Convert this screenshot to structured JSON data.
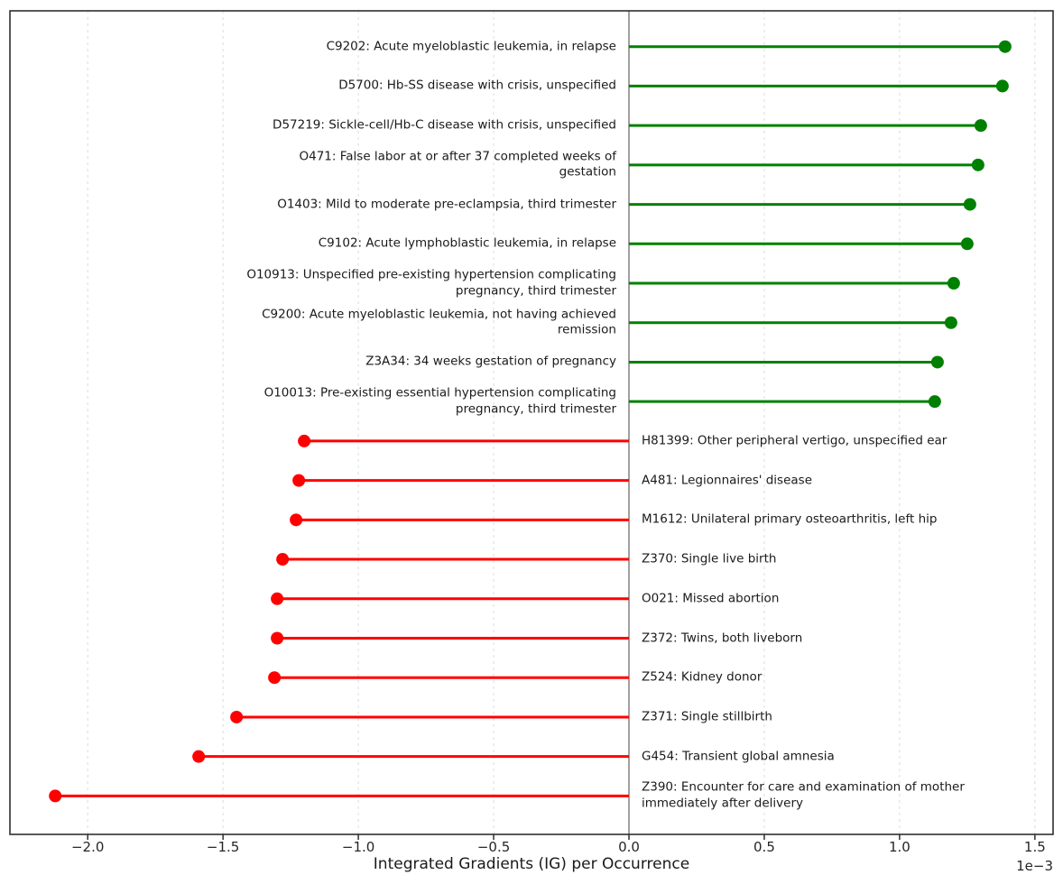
{
  "chart_data": {
    "type": "bar",
    "variant": "horizontal-lollipop-stem",
    "title": "",
    "xlabel": "Integrated Gradients (IG) per Occurrence",
    "ylabel": "",
    "axis_offset_label": "1e−3",
    "value_scale": "1e-3",
    "xlim_e3": [
      -2.29,
      1.57
    ],
    "grid": "vertical-dashed",
    "zero_line": true,
    "legend": "none",
    "xticks": [
      {
        "value": -2.0,
        "label": "−2.0"
      },
      {
        "value": -1.5,
        "label": "−1.5"
      },
      {
        "value": -1.0,
        "label": "−1.0"
      },
      {
        "value": -0.5,
        "label": "−0.5"
      },
      {
        "value": 0.0,
        "label": "0.0"
      },
      {
        "value": 0.5,
        "label": "0.5"
      },
      {
        "value": 1.0,
        "label": "1.0"
      },
      {
        "value": 1.5,
        "label": "1.5"
      }
    ],
    "colors": {
      "positive": "#008000",
      "negative": "#ff0000",
      "zero_line": "#808080",
      "gridline": "#dcdcdc",
      "spine": "#2f2f2f",
      "text": "#1a1a1a"
    },
    "points": [
      {
        "code": "C9202",
        "label": "C9202: Acute myeloblastic leukemia, in relapse",
        "value_e3": 1.39
      },
      {
        "code": "D5700",
        "label": "D5700: Hb-SS disease with crisis, unspecified",
        "value_e3": 1.38
      },
      {
        "code": "D57219",
        "label": "D57219: Sickle-cell/Hb-C disease with crisis, unspecified",
        "value_e3": 1.3
      },
      {
        "code": "O471",
        "label": "O471: False labor at or after 37 completed weeks of\ngestation",
        "value_e3": 1.29
      },
      {
        "code": "O1403",
        "label": "O1403: Mild to moderate pre-eclampsia, third trimester",
        "value_e3": 1.26
      },
      {
        "code": "C9102",
        "label": "C9102: Acute lymphoblastic leukemia, in relapse",
        "value_e3": 1.25
      },
      {
        "code": "O10913",
        "label": "O10913: Unspecified pre-existing hypertension complicating\npregnancy, third trimester",
        "value_e3": 1.2
      },
      {
        "code": "C9200",
        "label": "C9200: Acute myeloblastic leukemia, not having achieved\nremission",
        "value_e3": 1.19
      },
      {
        "code": "Z3A34",
        "label": "Z3A34: 34 weeks gestation of pregnancy",
        "value_e3": 1.14
      },
      {
        "code": "O10013",
        "label": "O10013: Pre-existing essential hypertension complicating\npregnancy, third trimester",
        "value_e3": 1.13
      },
      {
        "code": "H81399",
        "label": "H81399: Other peripheral vertigo, unspecified ear",
        "value_e3": -1.2
      },
      {
        "code": "A481",
        "label": "A481: Legionnaires' disease",
        "value_e3": -1.22
      },
      {
        "code": "M1612",
        "label": "M1612: Unilateral primary osteoarthritis, left hip",
        "value_e3": -1.23
      },
      {
        "code": "Z370",
        "label": "Z370: Single live birth",
        "value_e3": -1.28
      },
      {
        "code": "O021",
        "label": "O021: Missed abortion",
        "value_e3": -1.3
      },
      {
        "code": "Z372",
        "label": "Z372: Twins, both liveborn",
        "value_e3": -1.3
      },
      {
        "code": "Z524",
        "label": "Z524: Kidney donor",
        "value_e3": -1.31
      },
      {
        "code": "Z371",
        "label": "Z371: Single stillbirth",
        "value_e3": -1.45
      },
      {
        "code": "G454",
        "label": "G454: Transient global amnesia",
        "value_e3": -1.59
      },
      {
        "code": "Z390",
        "label": "Z390: Encounter for care and examination of mother\nimmediately after delivery",
        "value_e3": -2.12
      }
    ]
  }
}
